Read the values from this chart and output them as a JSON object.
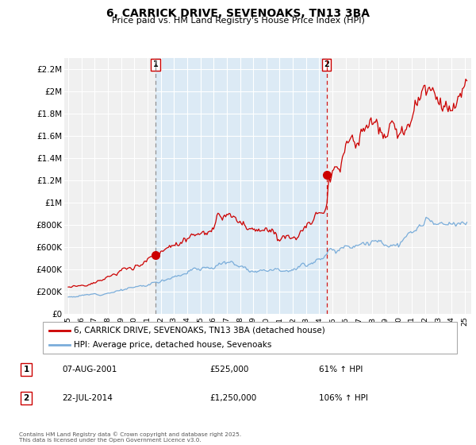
{
  "title": "6, CARRICK DRIVE, SEVENOAKS, TN13 3BA",
  "subtitle": "Price paid vs. HM Land Registry's House Price Index (HPI)",
  "legend_line1": "6, CARRICK DRIVE, SEVENOAKS, TN13 3BA (detached house)",
  "legend_line2": "HPI: Average price, detached house, Sevenoaks",
  "annotation1_label": "1",
  "annotation1_date": "07-AUG-2001",
  "annotation1_price": "£525,000",
  "annotation1_hpi": "61% ↑ HPI",
  "annotation1_year": 2001.6,
  "annotation1_value": 525000,
  "annotation2_label": "2",
  "annotation2_date": "22-JUL-2014",
  "annotation2_price": "£1,250,000",
  "annotation2_hpi": "106% ↑ HPI",
  "annotation2_year": 2014.55,
  "annotation2_value": 1250000,
  "footer": "Contains HM Land Registry data © Crown copyright and database right 2025.\nThis data is licensed under the Open Government Licence v3.0.",
  "red_color": "#cc0000",
  "blue_color": "#7aadda",
  "shade_color": "#dceaf5",
  "grid_color": "#cccccc",
  "bg_color": "#f0f0f0",
  "xlim": [
    1994.7,
    2025.5
  ],
  "ylim": [
    0,
    2300000
  ],
  "yticks": [
    0,
    200000,
    400000,
    600000,
    800000,
    1000000,
    1200000,
    1400000,
    1600000,
    1800000,
    2000000,
    2200000
  ],
  "ytick_labels": [
    "£0",
    "£200K",
    "£400K",
    "£600K",
    "£800K",
    "£1M",
    "£1.2M",
    "£1.4M",
    "£1.6M",
    "£1.8M",
    "£2M",
    "£2.2M"
  ],
  "xticks": [
    1995,
    1996,
    1997,
    1998,
    1999,
    2000,
    2001,
    2002,
    2003,
    2004,
    2005,
    2006,
    2007,
    2008,
    2009,
    2010,
    2011,
    2012,
    2013,
    2014,
    2015,
    2016,
    2017,
    2018,
    2019,
    2020,
    2021,
    2022,
    2023,
    2024,
    2025
  ]
}
